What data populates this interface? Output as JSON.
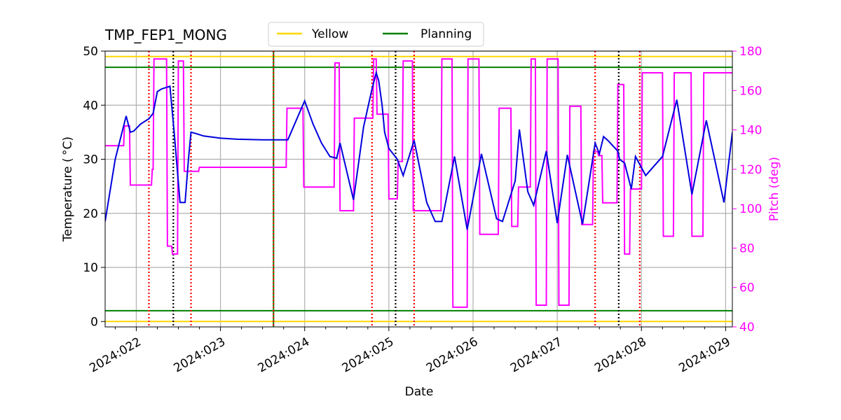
{
  "chart_data": {
    "type": "line",
    "title": "TMP_FEP1_MONG",
    "xlabel": "Date",
    "ylabel": "Temperature ($^\\circ$C)",
    "ylabel_display": "Temperature ( °C)",
    "y2label": "Pitch (deg)",
    "ylim": [
      -1,
      50
    ],
    "y2lim": [
      40,
      180
    ],
    "xlim_days": [
      21.63,
      29.08
    ],
    "grid": true,
    "legend": {
      "position": "top-center",
      "entries": [
        {
          "label": "Yellow",
          "color": "#ffd700"
        },
        {
          "label": "Planning",
          "color": "#008000"
        }
      ]
    },
    "x_ticks": [
      "2024:022",
      "2024:023",
      "2024:024",
      "2024:025",
      "2024:026",
      "2024:027",
      "2024:028",
      "2024:029"
    ],
    "x_tick_values": [
      22,
      23,
      24,
      25,
      26,
      27,
      28,
      29
    ],
    "y_ticks": [
      0,
      10,
      20,
      30,
      40,
      50
    ],
    "y2_ticks": [
      40,
      60,
      80,
      100,
      120,
      140,
      160,
      180
    ],
    "limits": {
      "yellow_hi": 49,
      "yellow_lo": 0,
      "planning_hi": 47,
      "planning_lo": 2
    },
    "colors": {
      "temperature": "#0000dd",
      "pitch": "#ff00ff",
      "yellow": "#ffd700",
      "planning": "#008000",
      "red_marker": "#ff0000",
      "black_marker": "#000000",
      "pitch_axis": "#ff00ff"
    },
    "vertical_markers": {
      "red_dotted": [
        22.15,
        22.65,
        23.63,
        24.8,
        25.3,
        27.45,
        27.98
      ],
      "black_dotted": [
        22.44,
        25.08,
        27.73
      ],
      "green_solid": [
        23.63
      ]
    },
    "series": [
      {
        "name": "TMP_FEP1_MONG",
        "axis": "left",
        "x": [
          21.63,
          21.75,
          21.88,
          21.93,
          21.97,
          22.05,
          22.15,
          22.2,
          22.25,
          22.3,
          22.4,
          22.45,
          22.52,
          22.58,
          22.62,
          22.65,
          22.7,
          22.8,
          23.0,
          23.2,
          23.5,
          23.8,
          24.0,
          24.1,
          24.2,
          24.3,
          24.38,
          24.42,
          24.58,
          24.7,
          24.8,
          24.85,
          24.88,
          24.92,
          24.95,
          25.0,
          25.1,
          25.17,
          25.3,
          25.45,
          25.55,
          25.63,
          25.78,
          25.93,
          26.1,
          26.28,
          26.35,
          26.5,
          26.55,
          26.65,
          26.72,
          26.87,
          27.0,
          27.12,
          27.3,
          27.45,
          27.5,
          27.55,
          27.6,
          27.72,
          27.74,
          27.8,
          27.88,
          27.93,
          28.05,
          28.25,
          28.42,
          28.6,
          28.77,
          28.98,
          29.08
        ],
        "y": [
          18.5,
          30,
          38,
          35,
          35.2,
          36.5,
          37.5,
          38.5,
          42.5,
          43,
          43.5,
          35,
          22,
          22,
          30,
          35,
          34.8,
          34.3,
          33.9,
          33.7,
          33.6,
          33.6,
          40.8,
          36.5,
          33,
          30.5,
          30.2,
          33,
          22.5,
          36,
          43,
          46,
          44.5,
          40,
          35,
          32,
          30,
          27,
          33.5,
          22,
          18.5,
          18.5,
          30.5,
          17,
          31,
          19,
          18.5,
          26,
          35.5,
          24,
          21.5,
          31.5,
          18.2,
          30.8,
          18,
          33,
          31,
          34.2,
          33.5,
          31.5,
          30,
          29.3,
          24.5,
          30.5,
          27,
          30.5,
          41,
          23.5,
          37.2,
          22,
          35
        ]
      },
      {
        "name": "Pitch",
        "axis": "right",
        "x": [
          21.63,
          21.85,
          21.86,
          21.92,
          21.93,
          22.18,
          22.19,
          22.2,
          22.21,
          22.36,
          22.37,
          22.42,
          22.43,
          22.49,
          22.5,
          22.56,
          22.57,
          22.64,
          22.65,
          22.74,
          22.75,
          23.78,
          23.79,
          23.98,
          23.99,
          24.35,
          24.36,
          24.41,
          24.42,
          24.58,
          24.59,
          24.81,
          24.82,
          24.85,
          24.86,
          24.99,
          25.0,
          25.1,
          25.11,
          25.16,
          25.17,
          25.28,
          25.29,
          25.62,
          25.63,
          25.75,
          25.76,
          25.93,
          25.94,
          26.07,
          26.08,
          26.3,
          26.31,
          26.45,
          26.46,
          26.53,
          26.54,
          26.68,
          26.69,
          26.74,
          26.75,
          26.87,
          26.88,
          27.01,
          27.02,
          27.14,
          27.15,
          27.28,
          27.29,
          27.42,
          27.43,
          27.48,
          27.49,
          27.53,
          27.54,
          27.71,
          27.72,
          27.79,
          27.8,
          27.86,
          27.87,
          27.93,
          27.94,
          28.0,
          28.01,
          28.25,
          28.26,
          28.38,
          28.39,
          28.59,
          28.6,
          28.73,
          28.74,
          28.93,
          28.94,
          29.08
        ],
        "y": [
          132,
          132,
          142,
          142,
          112,
          112,
          120,
          120,
          176,
          176,
          81,
          81,
          77,
          77,
          175,
          175,
          119,
          119,
          119,
          119,
          121,
          121,
          151,
          151,
          111,
          111,
          174,
          174,
          99,
          99,
          146,
          146,
          176,
          176,
          148,
          148,
          105,
          105,
          124,
          124,
          175,
          175,
          99,
          99,
          176,
          176,
          50,
          50,
          176,
          176,
          87,
          87,
          151,
          151,
          91,
          91,
          111,
          111,
          176,
          176,
          51,
          51,
          176,
          176,
          51,
          51,
          152,
          152,
          92,
          92,
          129,
          129,
          127,
          127,
          103,
          103,
          163,
          163,
          77,
          77,
          110,
          110,
          110,
          110,
          169,
          169,
          86,
          86,
          169,
          169,
          86,
          86,
          169,
          169,
          169,
          169
        ]
      }
    ]
  }
}
